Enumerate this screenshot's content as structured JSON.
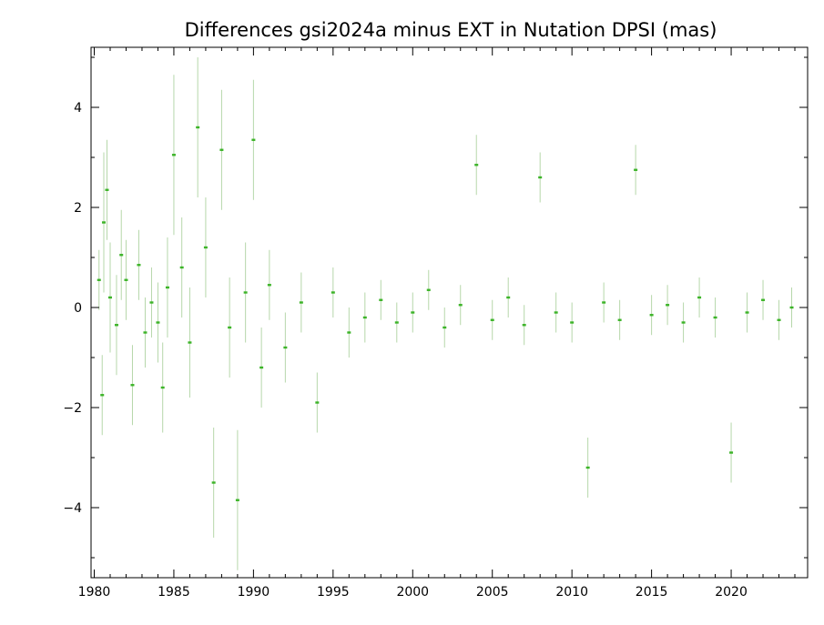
{
  "chart_data": {
    "type": "scatter",
    "title": "Differences gsi2024a minus EXT in Nutation DPSI (mas)",
    "xlabel": "",
    "ylabel": "",
    "xlim": [
      1979.8,
      2024.8
    ],
    "ylim": [
      -5.4,
      5.2
    ],
    "grid": false,
    "legend": "none",
    "colors": {
      "point": "#3cb428",
      "errorbar": "#b6d7aa",
      "axis": "#000000"
    },
    "x_ticks": [
      1980,
      1985,
      1990,
      1995,
      2000,
      2005,
      2010,
      2015,
      2020
    ],
    "x_tick_labels": [
      "1980",
      "1985",
      "1990",
      "1995",
      "2000",
      "2005",
      "2010",
      "2015",
      "2020"
    ],
    "y_ticks": [
      -4,
      -2,
      0,
      2,
      4
    ],
    "y_tick_labels": [
      "−4",
      "−2",
      "0",
      "2",
      "4"
    ],
    "series": [
      {
        "x": [
          1980.3,
          1980.5,
          1980.6,
          1980.8,
          1981.0,
          1981.4,
          1981.7,
          1982.0,
          1982.4,
          1982.8,
          1983.2,
          1983.6,
          1984.0,
          1984.3,
          1984.6,
          1985.0,
          1985.5,
          1986.0,
          1986.5,
          1987.0,
          1987.5,
          1988.0,
          1988.5,
          1989.0,
          1989.5,
          1990.0,
          1990.5,
          1991.0,
          1992.0,
          1993.0,
          1994.0,
          1995.0,
          1996.0,
          1997.0,
          1998.0,
          1999.0,
          2000.0,
          2001.0,
          2002.0,
          2003.0,
          2004.0,
          2005.0,
          2006.0,
          2007.0,
          2008.0,
          2009.0,
          2010.0,
          2011.0,
          2012.0,
          2013.0,
          2014.0,
          2015.0,
          2016.0,
          2017.0,
          2018.0,
          2019.0,
          2020.0,
          2021.0,
          2022.0,
          2023.0,
          2023.8
        ],
        "y": [
          0.55,
          -1.75,
          1.7,
          2.35,
          0.2,
          -0.35,
          1.05,
          0.55,
          -1.55,
          0.85,
          -0.5,
          0.1,
          -0.3,
          -1.6,
          0.4,
          3.05,
          0.8,
          -0.7,
          3.6,
          1.2,
          -3.5,
          3.15,
          -0.4,
          -3.85,
          0.3,
          3.35,
          -1.2,
          0.45,
          -0.8,
          0.1,
          -1.9,
          0.3,
          -0.5,
          -0.2,
          0.15,
          -0.3,
          -0.1,
          0.35,
          -0.4,
          0.05,
          2.85,
          -0.25,
          0.2,
          -0.35,
          2.6,
          -0.1,
          -0.3,
          -3.2,
          0.1,
          -0.25,
          2.75,
          -0.15,
          0.05,
          -0.3,
          0.2,
          -0.2,
          -2.9,
          -0.1,
          0.15,
          -0.25,
          0.0
        ],
        "yerr": [
          0.6,
          0.8,
          1.4,
          1.0,
          1.1,
          1.0,
          0.9,
          0.8,
          0.8,
          0.7,
          0.7,
          0.7,
          0.8,
          0.9,
          1.0,
          1.6,
          1.0,
          1.1,
          1.4,
          1.0,
          1.1,
          1.2,
          1.0,
          1.4,
          1.0,
          1.2,
          0.8,
          0.7,
          0.7,
          0.6,
          0.6,
          0.5,
          0.5,
          0.5,
          0.4,
          0.4,
          0.4,
          0.4,
          0.4,
          0.4,
          0.6,
          0.4,
          0.4,
          0.4,
          0.5,
          0.4,
          0.4,
          0.6,
          0.4,
          0.4,
          0.5,
          0.4,
          0.4,
          0.4,
          0.4,
          0.4,
          0.6,
          0.4,
          0.4,
          0.4,
          0.4
        ]
      }
    ]
  }
}
